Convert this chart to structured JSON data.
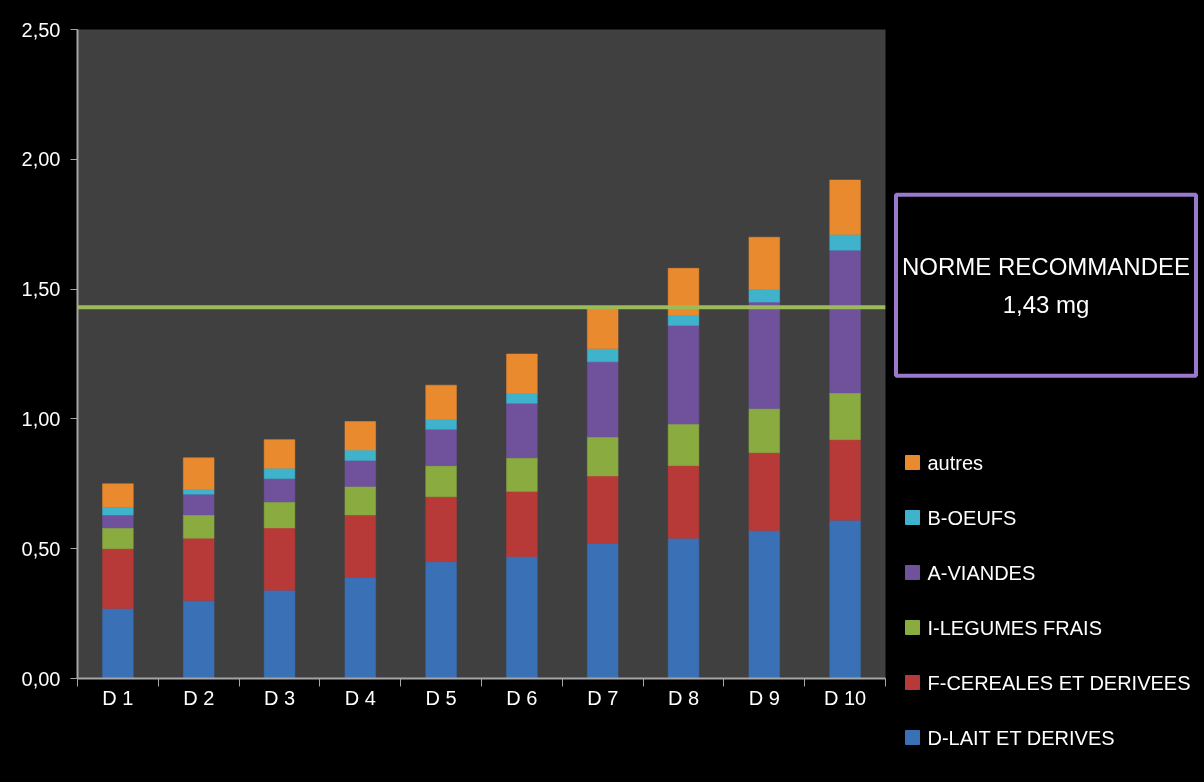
{
  "chart_data": {
    "type": "bar",
    "stacked": true,
    "categories": [
      "D 1",
      "D 2",
      "D 3",
      "D 4",
      "D 5",
      "D 6",
      "D 7",
      "D 8",
      "D 9",
      "D 10"
    ],
    "series": [
      {
        "name": "D-LAIT ET DERIVES",
        "color": "#3a70b5",
        "values": [
          0.27,
          0.3,
          0.34,
          0.39,
          0.45,
          0.47,
          0.52,
          0.54,
          0.57,
          0.61
        ]
      },
      {
        "name": "F-CEREALES ET DERIVEES",
        "color": "#b83a38",
        "values": [
          0.23,
          0.24,
          0.24,
          0.24,
          0.25,
          0.25,
          0.26,
          0.28,
          0.3,
          0.31
        ]
      },
      {
        "name": "I-LEGUMES FRAIS",
        "color": "#8aab3f",
        "values": [
          0.08,
          0.09,
          0.1,
          0.11,
          0.12,
          0.13,
          0.15,
          0.16,
          0.17,
          0.18
        ]
      },
      {
        "name": "A-VIANDES",
        "color": "#70529c",
        "values": [
          0.05,
          0.08,
          0.09,
          0.1,
          0.14,
          0.21,
          0.29,
          0.38,
          0.41,
          0.55
        ]
      },
      {
        "name": "B-OEUFS",
        "color": "#3fb2cc",
        "values": [
          0.03,
          0.02,
          0.04,
          0.04,
          0.04,
          0.04,
          0.05,
          0.04,
          0.05,
          0.06
        ]
      },
      {
        "name": "autres",
        "color": "#ea8a2e",
        "values": [
          0.09,
          0.12,
          0.11,
          0.11,
          0.13,
          0.15,
          0.16,
          0.18,
          0.2,
          0.21
        ]
      }
    ],
    "ylim": [
      0,
      2.5
    ],
    "yticks": [
      {
        "value": 0,
        "label": "0,00"
      },
      {
        "value": 0.5,
        "label": "0,50"
      },
      {
        "value": 1,
        "label": "1,00"
      },
      {
        "value": 1.5,
        "label": "1,50"
      },
      {
        "value": 2,
        "label": "2,00"
      },
      {
        "value": 2.5,
        "label": "2,50"
      }
    ],
    "ref_lines": [
      {
        "axis": "y",
        "value": 1.43,
        "label": "NORME RECOMMANDEE 1,43 mg",
        "color": "#9bbb59"
      }
    ],
    "legend": "right"
  }
}
